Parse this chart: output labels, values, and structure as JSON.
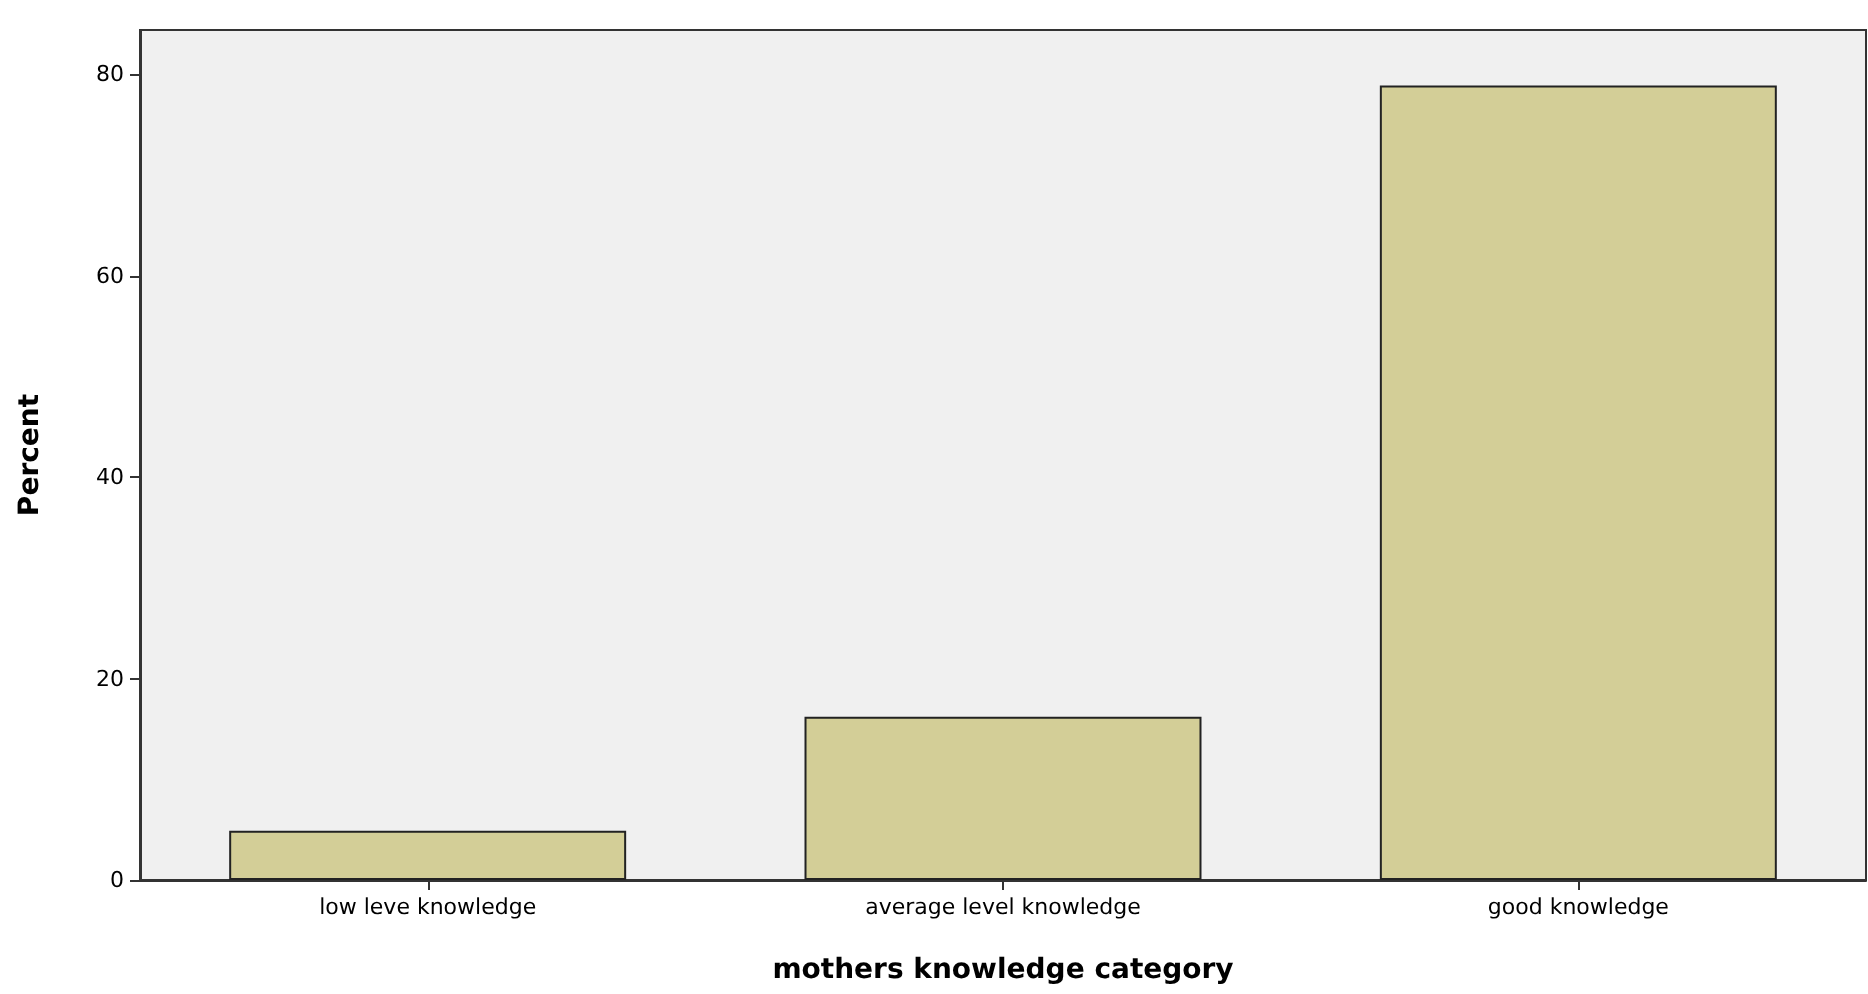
{
  "chart_data": {
    "type": "bar",
    "xlabel": "mothers knowledge category",
    "ylabel": "Percent",
    "categories": [
      "low leve knowledge",
      "average level knowledge",
      "good knowledge"
    ],
    "values": [
      4.9,
      16.2,
      78.9
    ],
    "color": "#d3ce97",
    "ylim": [
      0,
      84.4
    ],
    "yticks": [
      0,
      20,
      40,
      60,
      80
    ],
    "grid": false
  }
}
